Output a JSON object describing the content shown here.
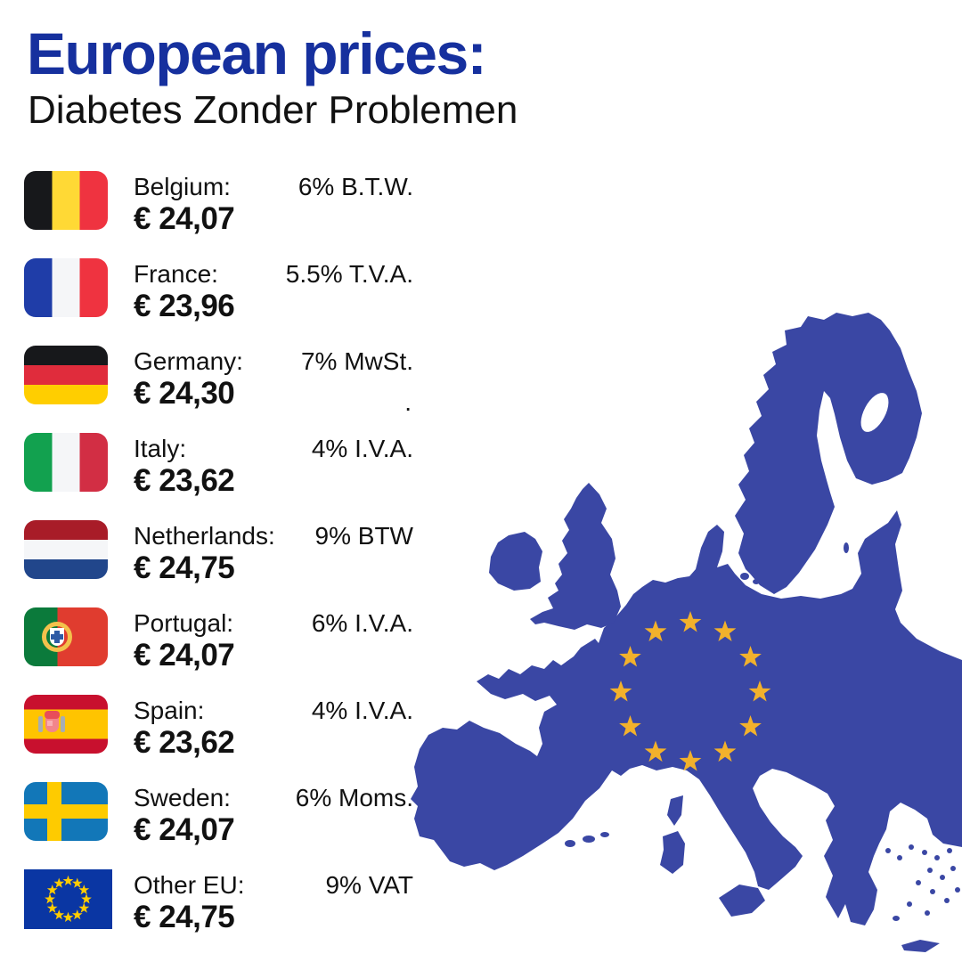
{
  "header": {
    "title": "European prices:",
    "subtitle": "Diabetes Zonder Problemen"
  },
  "rows": [
    {
      "flag": "be",
      "flag_name": "belgium-flag",
      "country": "Belgium:",
      "tax": "6% B.T.W.",
      "tax2": "",
      "price": "€ 24,07"
    },
    {
      "flag": "fr",
      "flag_name": "france-flag",
      "country": "France:",
      "tax": "5.5% T.V.A.",
      "tax2": "",
      "price": "€ 23,96"
    },
    {
      "flag": "de",
      "flag_name": "germany-flag",
      "country": "Germany:",
      "tax": "7% MwSt.",
      "tax2": ".",
      "price": "€ 24,30"
    },
    {
      "flag": "it",
      "flag_name": "italy-flag",
      "country": "Italy:",
      "tax": "4% I.V.A.",
      "tax2": "",
      "price": "€ 23,62"
    },
    {
      "flag": "nl",
      "flag_name": "netherlands-flag",
      "country": "Netherlands:",
      "tax": "9% BTW",
      "tax2": "",
      "price": "€ 24,75"
    },
    {
      "flag": "pt",
      "flag_name": "portugal-flag",
      "country": "Portugal:",
      "tax": "6% I.V.A.",
      "tax2": "",
      "price": "€ 24,07"
    },
    {
      "flag": "es",
      "flag_name": "spain-flag",
      "country": "Spain:",
      "tax": "4% I.V.A.",
      "tax2": "",
      "price": "€ 23,62"
    },
    {
      "flag": "se",
      "flag_name": "sweden-flag",
      "country": "Sweden:",
      "tax": "6% Moms.",
      "tax2": "",
      "price": "€ 24,07"
    },
    {
      "flag": "eu",
      "flag_name": "eu-flag",
      "country": "Other EU:",
      "tax": "9% VAT",
      "tax2": "",
      "price": "€ 24,75"
    }
  ],
  "map": {
    "name": "europe-map-with-eu-star-circle",
    "stars_count": 12
  },
  "colors": {
    "title_blue": "#16309E",
    "text_black": "#111111",
    "map_blue": "#3A47A4",
    "map_star_gold": "#F2B12C",
    "eu_flag_blue": "#0A36A3",
    "eu_flag_star_gold": "#FFCC00"
  }
}
